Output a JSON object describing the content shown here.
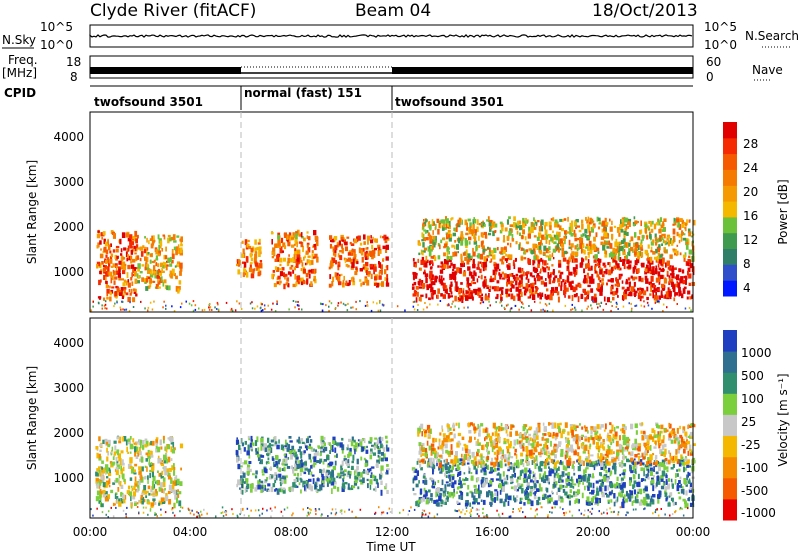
{
  "header": {
    "station": "Clyde River (fitACF)",
    "beam": "Beam 04",
    "date": "18/Oct/2013"
  },
  "noise_panel": {
    "left_label": "N.Sky",
    "left_ticks": [
      "10^5",
      "10^0"
    ],
    "right_ticks": [
      "10^5",
      "10^0"
    ],
    "right_label": "N.Search"
  },
  "freq_panel": {
    "left_label_1": "Freq.",
    "left_label_2": "[MHz]",
    "left_ticks": [
      "18",
      "8"
    ],
    "right_ticks": [
      "60",
      "0"
    ],
    "right_label": "Nave"
  },
  "cpid": {
    "label": "CPID",
    "segments": [
      {
        "name": "twofsound 3501",
        "start": 0,
        "end": 6
      },
      {
        "name": "normal (fast) 151",
        "start": 6,
        "end": 12
      },
      {
        "name": "twofsound 3501",
        "start": 12,
        "end": 24
      }
    ]
  },
  "power_panel": {
    "ylabel": "Slant Range [km]",
    "yticks": [
      "4000",
      "3000",
      "2000",
      "1000"
    ],
    "colorbar_label": "Power [dB]",
    "colorbar_ticks": [
      "28",
      "24",
      "20",
      "16",
      "12",
      "8",
      "4"
    ],
    "colors": [
      "#0018ff",
      "#2f4ec9",
      "#2f7f68",
      "#3e9a4e",
      "#6bc23a",
      "#f5b800",
      "#f59a00",
      "#f57a00",
      "#f55a00",
      "#f52a00",
      "#e00000"
    ]
  },
  "velocity_panel": {
    "ylabel": "Slant Range [km]",
    "yticks": [
      "4000",
      "3000",
      "2000",
      "1000"
    ],
    "colorbar_label": "Velocity [m s⁻¹]",
    "colorbar_ticks": [
      "1000",
      "500",
      "100",
      "25",
      "-25",
      "-100",
      "-500",
      "-1000"
    ],
    "colors": [
      "#1e3fbf",
      "#2f6f8f",
      "#2f8f6f",
      "#7ccf3c",
      "#c8c8c8",
      "#f5b800",
      "#f58a00",
      "#f55a00",
      "#e80000"
    ]
  },
  "x_axis": {
    "ticks": [
      "00:00",
      "04:00",
      "08:00",
      "12:00",
      "16:00",
      "20:00",
      "00:00"
    ],
    "label": "Time UT"
  },
  "chart_data": [
    {
      "type": "line",
      "panel": "noise",
      "xlabel": "",
      "ylabel": "N.Sky",
      "series": [
        {
          "name": "N.Sky"
        },
        {
          "name": "N.Search"
        }
      ],
      "x_range_hours": [
        0,
        24
      ],
      "y_scale": "log",
      "ylim": [
        1,
        100000
      ]
    },
    {
      "type": "line",
      "panel": "frequency",
      "ylabel": "Freq. [MHz]",
      "ylim": [
        8,
        18
      ],
      "y2label": "Nave",
      "y2lim": [
        0,
        60
      ],
      "x_range_hours": [
        0,
        24
      ]
    },
    {
      "type": "heatmap",
      "panel": "power",
      "title": "",
      "xlabel": "Time UT",
      "ylabel": "Slant Range [km]",
      "x_range_hours": [
        0,
        24
      ],
      "ylim": [
        180,
        4600
      ],
      "colorbar": {
        "label": "Power [dB]",
        "range": [
          0,
          32
        ]
      },
      "scatter_regions": [
        {
          "t0": 0.2,
          "t1": 1.8,
          "r0": 500,
          "r1": 2000,
          "level": 0.75
        },
        {
          "t0": 1.8,
          "t1": 3.6,
          "r0": 700,
          "r1": 1900,
          "level": 0.6
        },
        {
          "t0": 5.8,
          "t1": 6.8,
          "r0": 1000,
          "r1": 1800,
          "level": 0.7
        },
        {
          "t0": 7.2,
          "t1": 9.0,
          "r0": 800,
          "r1": 2000,
          "level": 0.7
        },
        {
          "t0": 9.5,
          "t1": 11.8,
          "r0": 800,
          "r1": 1900,
          "level": 0.75
        },
        {
          "t0": 12.8,
          "t1": 24.0,
          "r0": 500,
          "r1": 1400,
          "level": 0.95
        },
        {
          "t0": 13.0,
          "t1": 24.0,
          "r0": 1400,
          "r1": 2300,
          "level": 0.55
        }
      ]
    },
    {
      "type": "heatmap",
      "panel": "velocity",
      "xlabel": "Time UT",
      "ylabel": "Slant Range [km]",
      "x_range_hours": [
        0,
        24
      ],
      "ylim": [
        180,
        4600
      ],
      "colorbar": {
        "label": "Velocity [m s⁻¹]",
        "range": [
          -1000,
          1000
        ]
      },
      "scatter_regions": [
        {
          "t0": 0.2,
          "t1": 3.6,
          "r0": 500,
          "r1": 2000,
          "level": 0.5
        },
        {
          "t0": 5.8,
          "t1": 11.8,
          "r0": 800,
          "r1": 2000,
          "level": 0.7
        },
        {
          "t0": 12.8,
          "t1": 24.0,
          "r0": 500,
          "r1": 1500,
          "level": 0.75
        },
        {
          "t0": 13.0,
          "t1": 24.0,
          "r0": 1400,
          "r1": 2300,
          "level": 0.4
        }
      ]
    }
  ]
}
